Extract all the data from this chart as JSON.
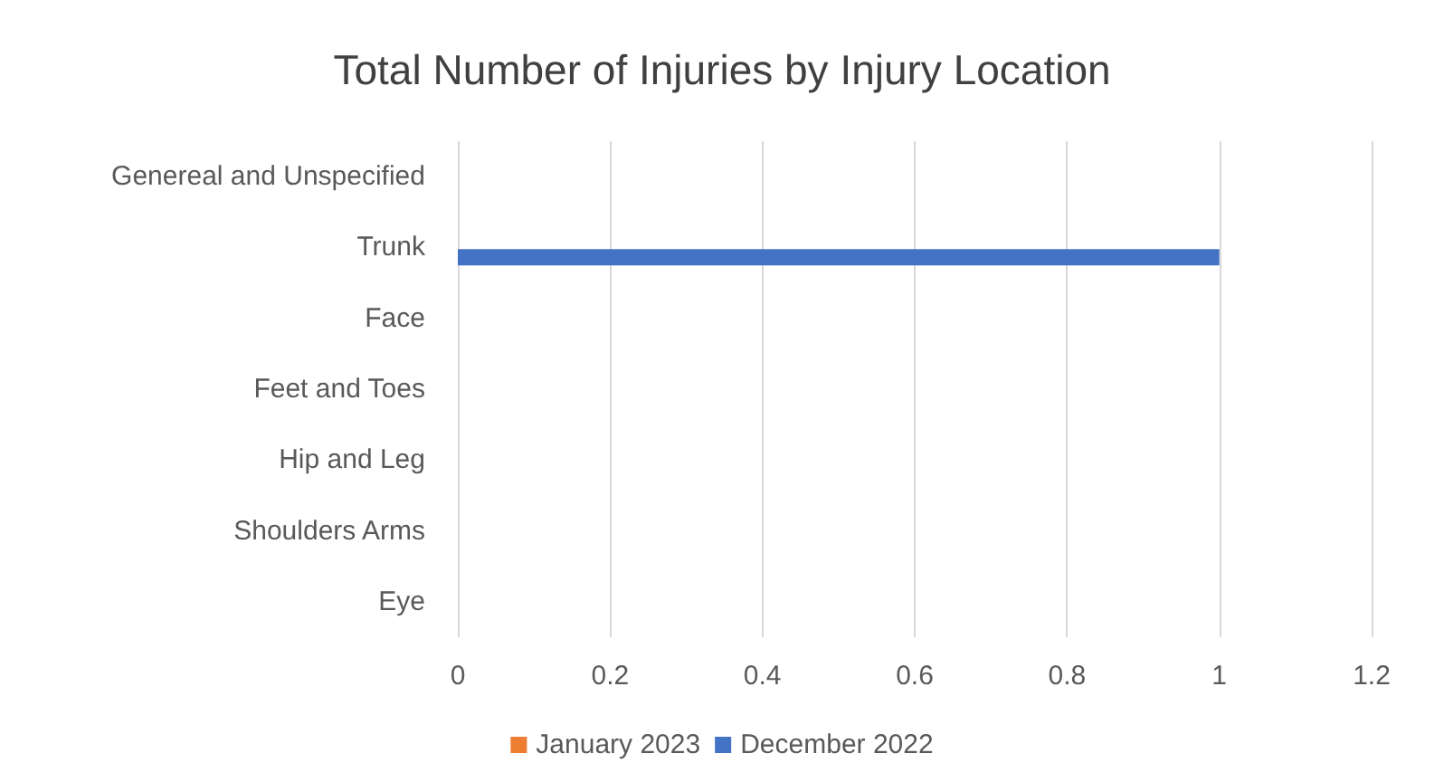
{
  "chart_data": {
    "type": "bar",
    "orientation": "horizontal",
    "title": "Total Number of Injuries by Injury Location",
    "categories": [
      "Genereal and Unspecified",
      "Trunk",
      "Face",
      "Feet and Toes",
      "Hip and Leg",
      "Shoulders Arms",
      "Eye"
    ],
    "series": [
      {
        "name": "January 2023",
        "color": "#ed7d31",
        "values": [
          0,
          0,
          0,
          0,
          0,
          0,
          0
        ]
      },
      {
        "name": "December 2022",
        "color": "#4472c4",
        "values": [
          0,
          1,
          0,
          0,
          0,
          0,
          0
        ]
      }
    ],
    "xlim": [
      0,
      1.2
    ],
    "xticks": [
      0,
      0.2,
      0.4,
      0.6,
      0.8,
      1,
      1.2
    ],
    "grid": "x",
    "legend": "bottom"
  }
}
